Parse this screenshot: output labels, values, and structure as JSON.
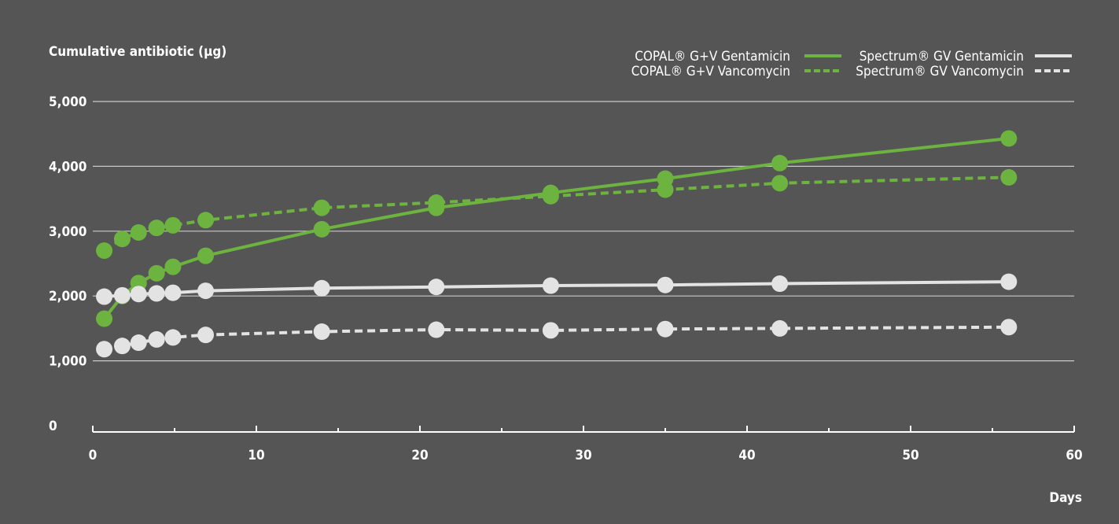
{
  "chart_data": {
    "type": "line",
    "title": "",
    "ylabel": "Cumulative antibiotic (µg)",
    "xlabel": "Days",
    "xlim": [
      0,
      60
    ],
    "ylim": [
      0,
      5000
    ],
    "x_ticks": [
      0,
      10,
      20,
      30,
      40,
      50,
      60
    ],
    "y_ticks": [
      0,
      1000,
      2000,
      3000,
      4000,
      5000
    ],
    "x_tick_labels": [
      "0",
      "10",
      "20",
      "30",
      "40",
      "50",
      "60"
    ],
    "y_tick_labels": [
      "0",
      "1,000",
      "2,000",
      "3,000",
      "4,000",
      "5,000"
    ],
    "grid": "horizontal",
    "legend_position": "top-right",
    "background": "#555555",
    "series": [
      {
        "name": "COPAL® G+V Gentamicin",
        "color": "#6db33f",
        "style": "solid",
        "x": [
          0.7,
          1.8,
          2.8,
          3.9,
          4.9,
          6.9,
          14,
          21,
          28,
          35,
          42,
          56
        ],
        "y": [
          1650,
          2000,
          2200,
          2350,
          2450,
          2620,
          3030,
          3360,
          3590,
          3810,
          4050,
          4430
        ]
      },
      {
        "name": "COPAL® G+V Vancomycin",
        "color": "#6db33f",
        "style": "dashed",
        "x": [
          0.7,
          1.8,
          2.8,
          3.9,
          4.9,
          6.9,
          14,
          21,
          28,
          35,
          42,
          56
        ],
        "y": [
          2700,
          2880,
          2980,
          3050,
          3090,
          3170,
          3360,
          3440,
          3540,
          3640,
          3740,
          3830
        ]
      },
      {
        "name": "Spectrum® GV Gentamicin",
        "color": "#e3e3e3",
        "style": "solid",
        "x": [
          0.7,
          1.8,
          2.8,
          3.9,
          4.9,
          6.9,
          14,
          21,
          28,
          35,
          42,
          56
        ],
        "y": [
          1990,
          2010,
          2030,
          2040,
          2050,
          2080,
          2120,
          2140,
          2160,
          2170,
          2190,
          2220
        ]
      },
      {
        "name": "Spectrum® GV Vancomycin",
        "color": "#e3e3e3",
        "style": "dashed",
        "x": [
          0.7,
          1.8,
          2.8,
          3.9,
          4.9,
          6.9,
          14,
          21,
          28,
          35,
          42,
          56
        ],
        "y": [
          1180,
          1230,
          1280,
          1330,
          1360,
          1400,
          1450,
          1480,
          1470,
          1490,
          1500,
          1520
        ]
      }
    ]
  }
}
